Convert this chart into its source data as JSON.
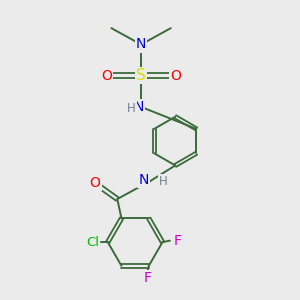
{
  "background_color": "#ebebeb",
  "bond_color": "#3a6b3a",
  "atom_colors": {
    "N": "#0000dd",
    "O": "#ff0000",
    "S": "#dddd00",
    "Cl": "#00bb00",
    "F": "#cc00cc",
    "H": "#708090",
    "C": "#3a6b3a"
  },
  "figsize": [
    3.0,
    3.0
  ],
  "dpi": 100
}
